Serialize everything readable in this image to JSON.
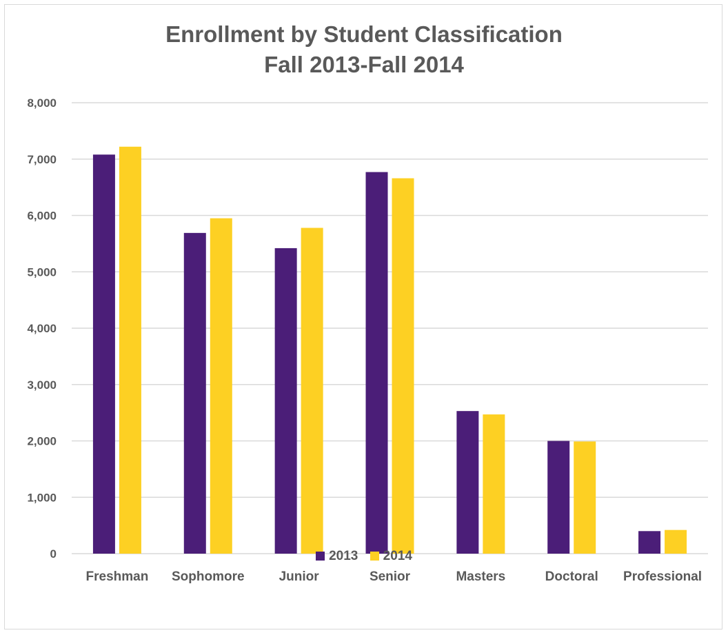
{
  "chart_data": {
    "type": "bar",
    "title": [
      "Enrollment by Student Classification",
      "Fall 2013-Fall 2014"
    ],
    "xlabel": "",
    "ylabel": "",
    "categories": [
      "Freshman",
      "Sophomore",
      "Junior",
      "Senior",
      "Masters",
      "Doctoral",
      "Professional"
    ],
    "series": [
      {
        "name": "2013",
        "color": "#4b1e78",
        "values": [
          7080,
          5690,
          5420,
          6770,
          2530,
          2000,
          400
        ]
      },
      {
        "name": "2014",
        "color": "#fdd023",
        "values": [
          7220,
          5950,
          5780,
          6660,
          2470,
          1990,
          420
        ]
      }
    ],
    "ylim": [
      0,
      8000
    ],
    "yticks": [
      "0",
      "1,000",
      "2,000",
      "3,000",
      "4,000",
      "5,000",
      "6,000",
      "7,000",
      "8,000"
    ],
    "grid": true,
    "legend_position": "bottom"
  }
}
